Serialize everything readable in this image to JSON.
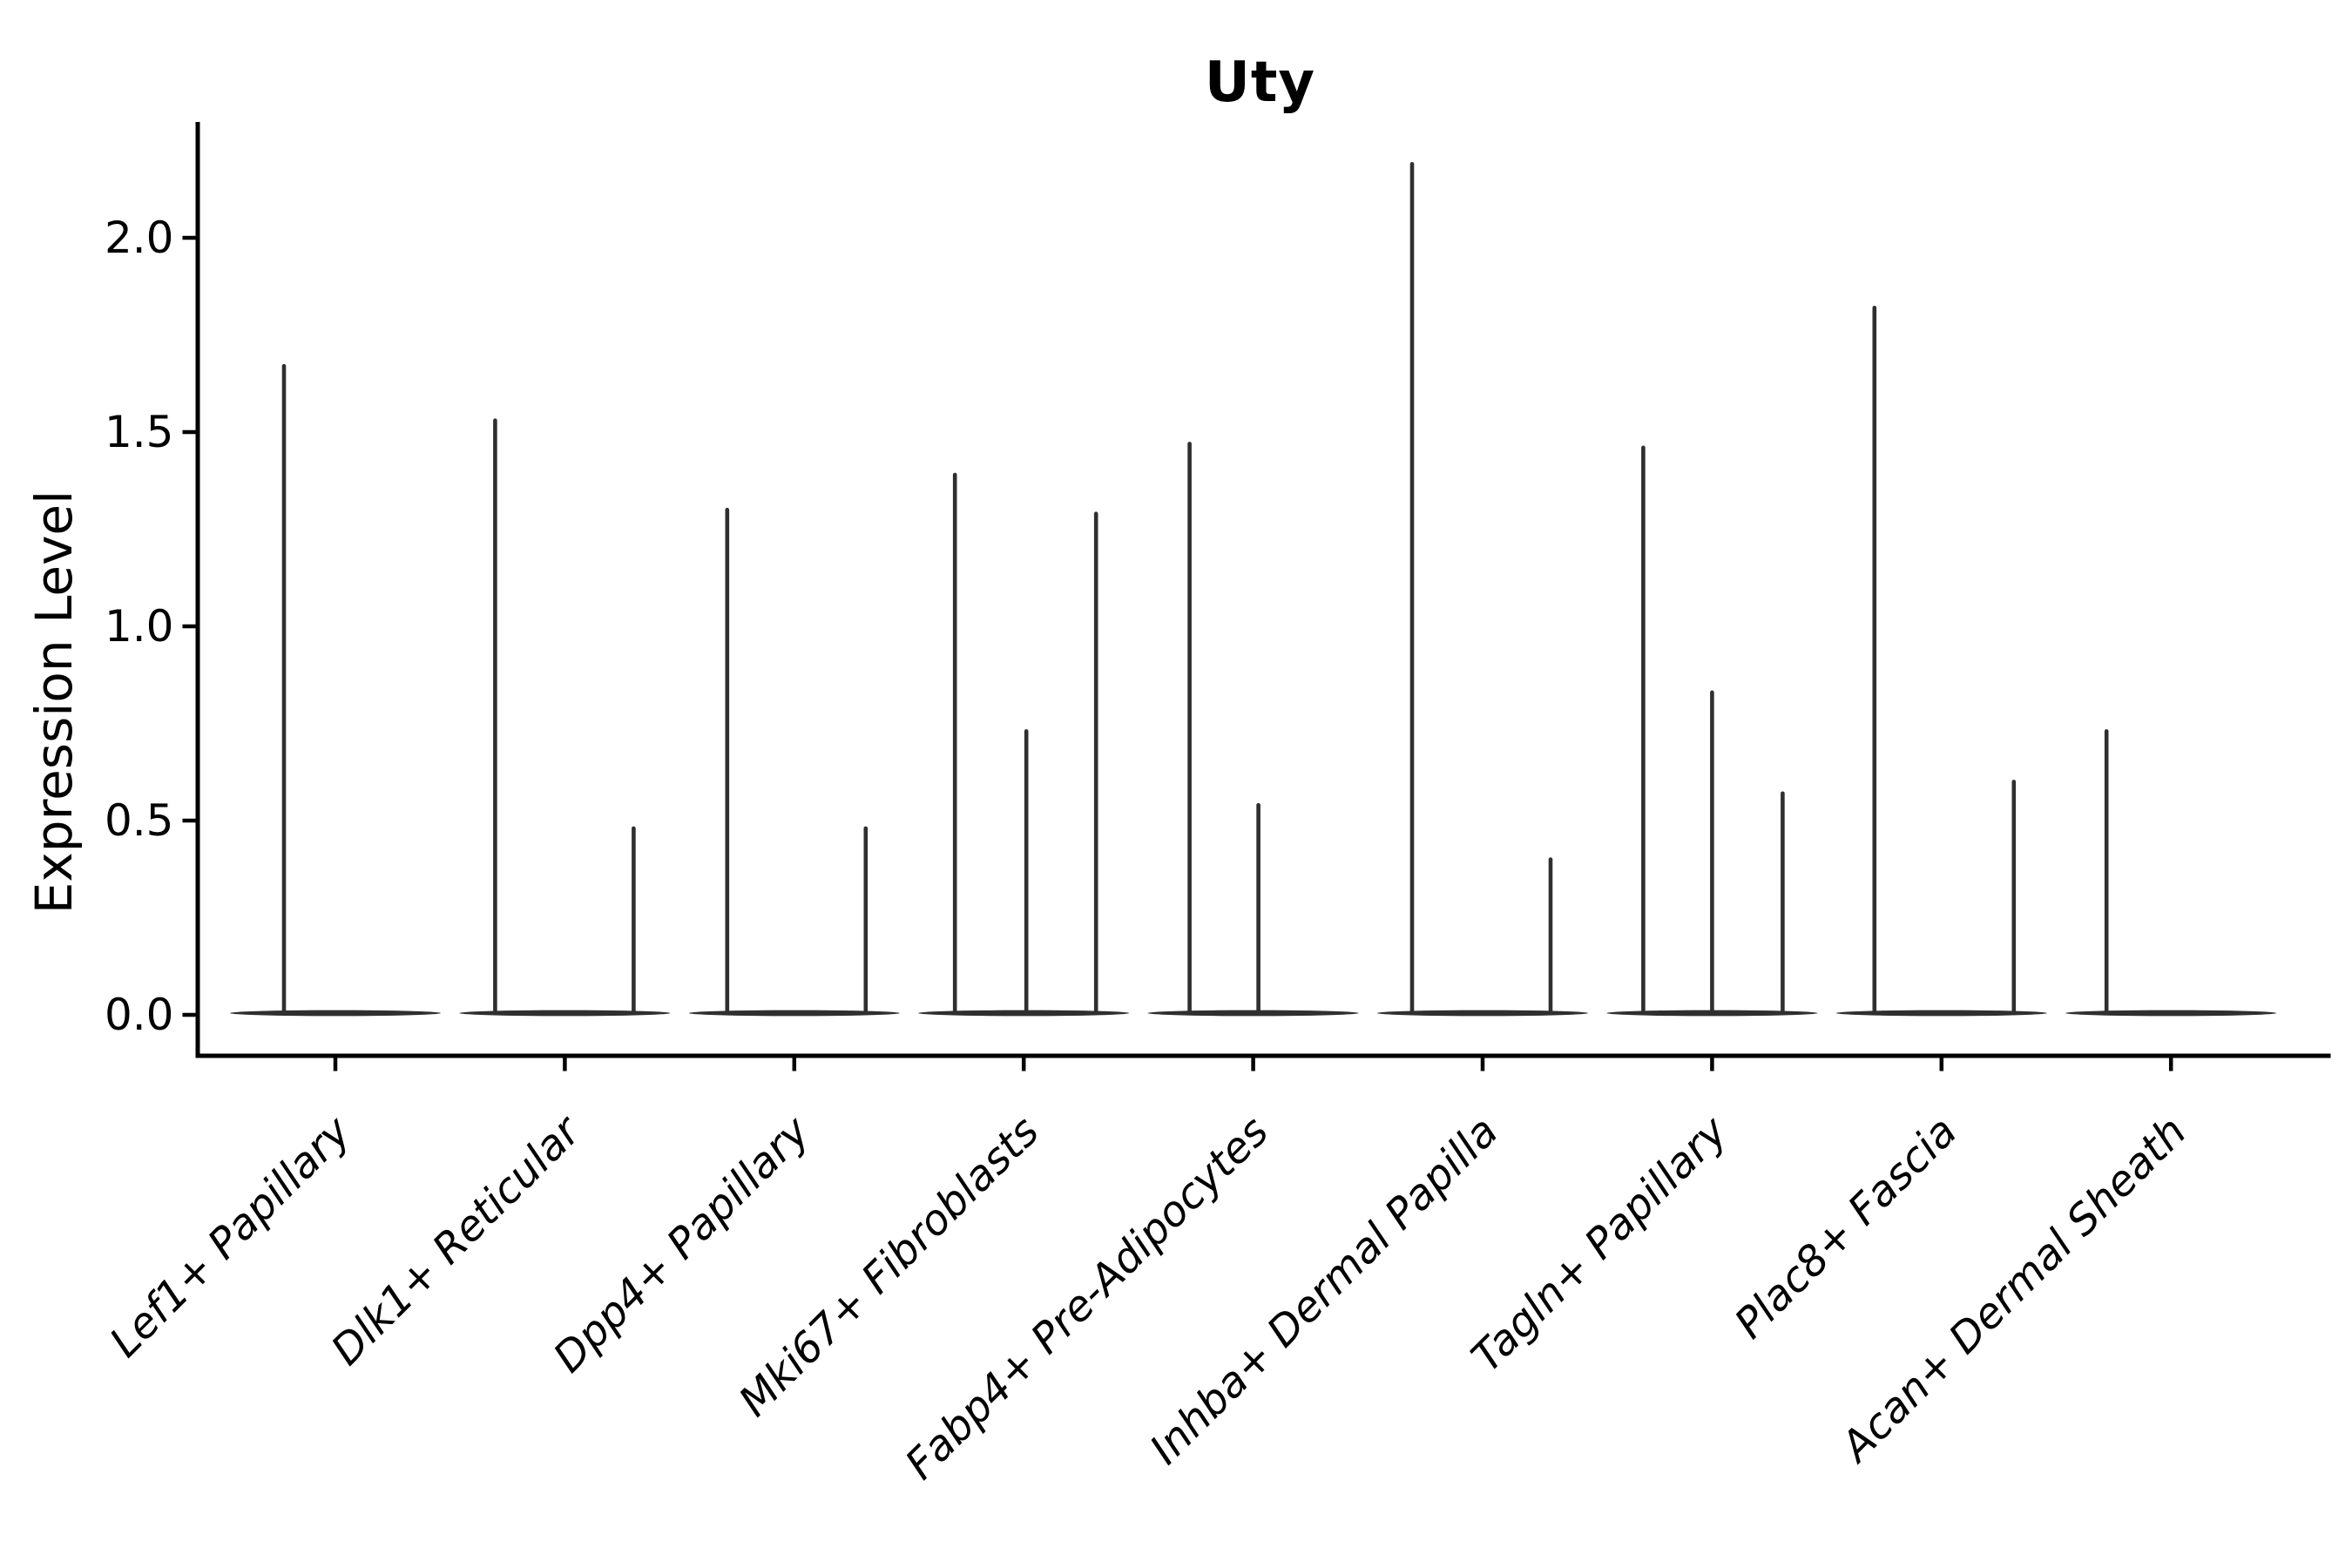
{
  "figure": {
    "title": "Uty"
  },
  "chart_data": {
    "type": "violin",
    "title": "Uty",
    "xlabel": "",
    "ylabel": "Expression Level",
    "ylim": [
      -0.1,
      2.3
    ],
    "grid": false,
    "legend": "none",
    "ytick_labels": [
      "2.0",
      "1.5",
      "1.0",
      "0.5",
      "0.0"
    ],
    "ytick_values": [
      2.0,
      1.5,
      1.0,
      0.5,
      0.0
    ],
    "description": "Violin plot of Uty expression; each cell-type category shows a wide flat violin base at 0 with thin vertical spikes (sub-violins) reaching the max expression of rare positive cells.",
    "categories": [
      {
        "label": "Lef1+ Papillary",
        "violins": [
          {
            "pos": -59,
            "max": 1.67
          }
        ]
      },
      {
        "label": "Dlk1+ Reticular",
        "violins": [
          {
            "pos": -80,
            "max": 1.53
          },
          {
            "pos": 79,
            "max": 0.48
          }
        ]
      },
      {
        "label": "Dpp4+ Papillary",
        "violins": [
          {
            "pos": -77,
            "max": 1.3
          },
          {
            "pos": 82,
            "max": 0.48
          }
        ]
      },
      {
        "label": "Mki67+ Fibroblasts",
        "violins": [
          {
            "pos": -79,
            "max": 1.39
          },
          {
            "pos": 3,
            "max": 0.73
          },
          {
            "pos": 83,
            "max": 1.29
          }
        ]
      },
      {
        "label": "Fabp4+ Pre-Adipocytes",
        "violins": [
          {
            "pos": -73,
            "max": 1.47
          },
          {
            "pos": 6,
            "max": 0.54
          }
        ]
      },
      {
        "label": "Inhba+ Dermal Papilla",
        "violins": [
          {
            "pos": -81,
            "max": 2.19
          },
          {
            "pos": 78,
            "max": 0.4
          }
        ]
      },
      {
        "label": "Tagln+ Papillary",
        "violins": [
          {
            "pos": -79,
            "max": 1.46
          },
          {
            "pos": 0,
            "max": 0.83
          },
          {
            "pos": 81,
            "max": 0.57
          }
        ]
      },
      {
        "label": "Plac8+ Fascia",
        "violins": [
          {
            "pos": -77,
            "max": 1.82
          },
          {
            "pos": 83,
            "max": 0.6
          }
        ]
      },
      {
        "label": "Acan+ Dermal Sheath",
        "violins": [
          {
            "pos": -74,
            "max": 0.73
          }
        ]
      }
    ],
    "colors": {
      "violin": "#2f2f2f",
      "axis": "#000000",
      "text": "#000000",
      "background": "#ffffff"
    }
  }
}
